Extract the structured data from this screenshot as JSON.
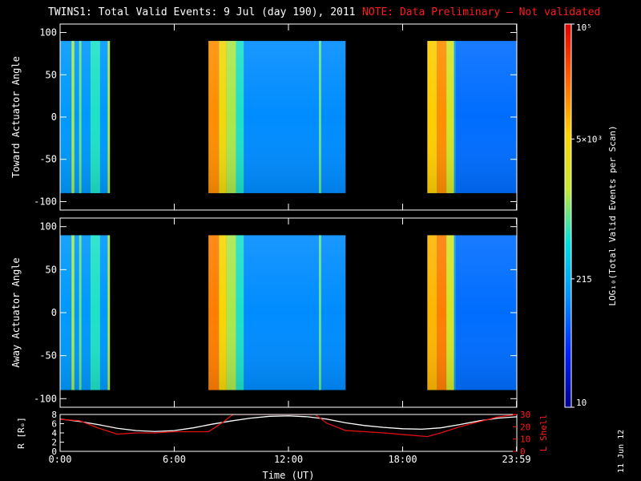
{
  "header": {
    "title": "TWINS1: Total Valid Events:  9 Jul (day 190), 2011",
    "note": "NOTE: Data Preliminary – Not validated"
  },
  "date_stamp": "11 Jun 12",
  "colors": {
    "background": "#000000",
    "axes": "#ffffff",
    "note": "#ff1a1a",
    "field_line": "#ffffff",
    "lshell_line": "#e01010",
    "colormap": [
      "#00008c",
      "#0022ff",
      "#0090ff",
      "#00e0e0",
      "#c8e832",
      "#ffd200",
      "#ff6000",
      "#e00000"
    ]
  },
  "chart_data": [
    {
      "type": "heatmap",
      "panel": "top",
      "ylabel": "Toward Actuator Angle",
      "ylim": [
        -110,
        110
      ],
      "yticks": [
        "100",
        "50",
        "0",
        "-50",
        "-100"
      ],
      "xlim": [
        0,
        24
      ],
      "data_rows": [
        -90,
        90
      ],
      "segments": [
        {
          "start": 0.0,
          "end": 2.6,
          "level": 0.3,
          "bands": [
            {
              "t": 0.6,
              "w": 0.15,
              "level": 0.55
            },
            {
              "t": 1.0,
              "w": 0.12,
              "level": 0.5
            },
            {
              "t": 1.6,
              "w": 0.5,
              "level": 0.45
            },
            {
              "t": 2.5,
              "w": 0.12,
              "level": 0.55
            }
          ]
        },
        {
          "start": 7.8,
          "end": 15.0,
          "level": 0.28,
          "bands": [
            {
              "t": 7.8,
              "w": 0.55,
              "level": 0.8
            },
            {
              "t": 8.35,
              "w": 0.4,
              "level": 0.68
            },
            {
              "t": 8.75,
              "w": 0.5,
              "level": 0.55
            },
            {
              "t": 9.25,
              "w": 0.4,
              "level": 0.45
            },
            {
              "t": 13.6,
              "w": 0.12,
              "level": 0.5
            }
          ]
        },
        {
          "start": 19.3,
          "end": 20.8,
          "level": 0.3,
          "bands": [
            {
              "t": 19.3,
              "w": 0.5,
              "level": 0.72
            },
            {
              "t": 19.8,
              "w": 0.5,
              "level": 0.8
            },
            {
              "t": 20.3,
              "w": 0.4,
              "level": 0.6
            }
          ]
        },
        {
          "start": 20.8,
          "end": 23.99,
          "level": 0.24,
          "bands": []
        }
      ]
    },
    {
      "type": "heatmap",
      "panel": "middle",
      "ylabel": "Away Actuator Angle",
      "ylim": [
        -110,
        110
      ],
      "yticks": [
        "100",
        "50",
        "0",
        "-50",
        "-100"
      ],
      "xlim": [
        0,
        24
      ],
      "data_rows": [
        -90,
        90
      ],
      "segments": [
        {
          "start": 0.0,
          "end": 2.6,
          "level": 0.3,
          "bands": [
            {
              "t": 0.6,
              "w": 0.15,
              "level": 0.55
            },
            {
              "t": 1.0,
              "w": 0.12,
              "level": 0.5
            },
            {
              "t": 1.6,
              "w": 0.5,
              "level": 0.45
            },
            {
              "t": 2.5,
              "w": 0.12,
              "level": 0.55
            }
          ]
        },
        {
          "start": 7.8,
          "end": 15.0,
          "level": 0.28,
          "bands": [
            {
              "t": 7.8,
              "w": 0.55,
              "level": 0.82
            },
            {
              "t": 8.35,
              "w": 0.4,
              "level": 0.7
            },
            {
              "t": 8.75,
              "w": 0.5,
              "level": 0.55
            },
            {
              "t": 9.25,
              "w": 0.4,
              "level": 0.45
            },
            {
              "t": 13.6,
              "w": 0.12,
              "level": 0.5
            }
          ]
        },
        {
          "start": 19.3,
          "end": 20.8,
          "level": 0.3,
          "bands": [
            {
              "t": 19.3,
              "w": 0.5,
              "level": 0.75
            },
            {
              "t": 19.8,
              "w": 0.5,
              "level": 0.82
            },
            {
              "t": 20.3,
              "w": 0.4,
              "level": 0.6
            }
          ]
        },
        {
          "start": 20.8,
          "end": 23.99,
          "level": 0.24,
          "bands": []
        }
      ]
    },
    {
      "type": "line",
      "panel": "bottom",
      "ylabel": "R [Rₑ]",
      "ylabel_right": "L Shell",
      "xlabel": "Time (UT)",
      "xlim": [
        0,
        24
      ],
      "ylim": [
        0,
        8
      ],
      "yticks": [
        "8",
        "6",
        "4",
        "2",
        "0"
      ],
      "ylim_right": [
        0,
        30
      ],
      "yticks_right": [
        "30",
        "20",
        "10",
        "0"
      ],
      "xticks": [
        {
          "t": 0,
          "label": "0:00"
        },
        {
          "t": 6,
          "label": "6:00"
        },
        {
          "t": 12,
          "label": "12:00"
        },
        {
          "t": 18,
          "label": "18:00"
        },
        {
          "t": 23.983,
          "label": "23:59"
        }
      ],
      "series": [
        {
          "color": "#ffffff",
          "axis": "left",
          "x": [
            0,
            1,
            2,
            3,
            4,
            5,
            6,
            7,
            8,
            9,
            10,
            11,
            12,
            13,
            14,
            15,
            16,
            17,
            18,
            19,
            20,
            21,
            22,
            23,
            24
          ],
          "y": [
            7.0,
            6.5,
            5.8,
            5.0,
            4.5,
            4.3,
            4.5,
            5.1,
            5.9,
            6.6,
            7.2,
            7.6,
            7.7,
            7.5,
            7.0,
            6.2,
            5.6,
            5.2,
            4.9,
            4.8,
            5.1,
            5.8,
            6.6,
            7.2,
            7.5
          ]
        },
        {
          "color": "#e01010",
          "axis": "right",
          "x": [
            0,
            1,
            2,
            3,
            4,
            5,
            6,
            7,
            7.8,
            8.5,
            9.0,
            9.1,
            13.4,
            13.5,
            14.0,
            15.0,
            17.0,
            19.3,
            20.0,
            21.0,
            22.0,
            23.0,
            24.0
          ],
          "y": [
            26,
            25,
            19,
            14,
            15,
            15,
            16,
            16,
            16,
            23,
            29,
            30,
            30,
            29,
            23,
            17,
            15,
            12,
            15,
            20,
            24,
            28,
            30
          ]
        }
      ]
    },
    {
      "type": "colorbar",
      "ylabel": "LOG₁₀(Total Valid Events per Scan)",
      "ticks": [
        {
          "label": "10",
          "frac": 0.0
        },
        {
          "label": "215",
          "frac": 0.335
        },
        {
          "label": "5×10³",
          "frac": 0.7
        },
        {
          "label": "10⁵",
          "frac": 1.0
        }
      ]
    }
  ]
}
